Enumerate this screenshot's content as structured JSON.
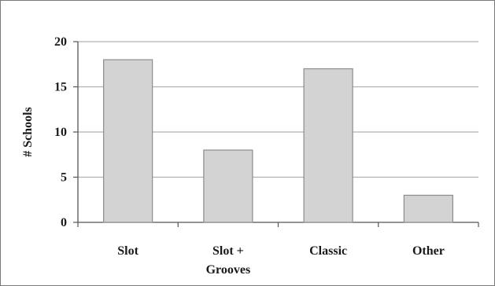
{
  "chart_data": {
    "type": "bar",
    "title": "",
    "xlabel": "",
    "ylabel": "# Schools",
    "ylim": [
      0,
      20
    ],
    "yticks": [
      0,
      5,
      10,
      15,
      20
    ],
    "grid": true,
    "categories": [
      [
        "Slot"
      ],
      [
        "Slot +",
        "Grooves"
      ],
      [
        "Classic"
      ],
      [
        "Other"
      ]
    ],
    "values": [
      18,
      8,
      17,
      3
    ],
    "bar_color": "#d3d3d3",
    "bar_edge_color": "#8c8c8c",
    "grid_color": "#b0b0b0"
  }
}
